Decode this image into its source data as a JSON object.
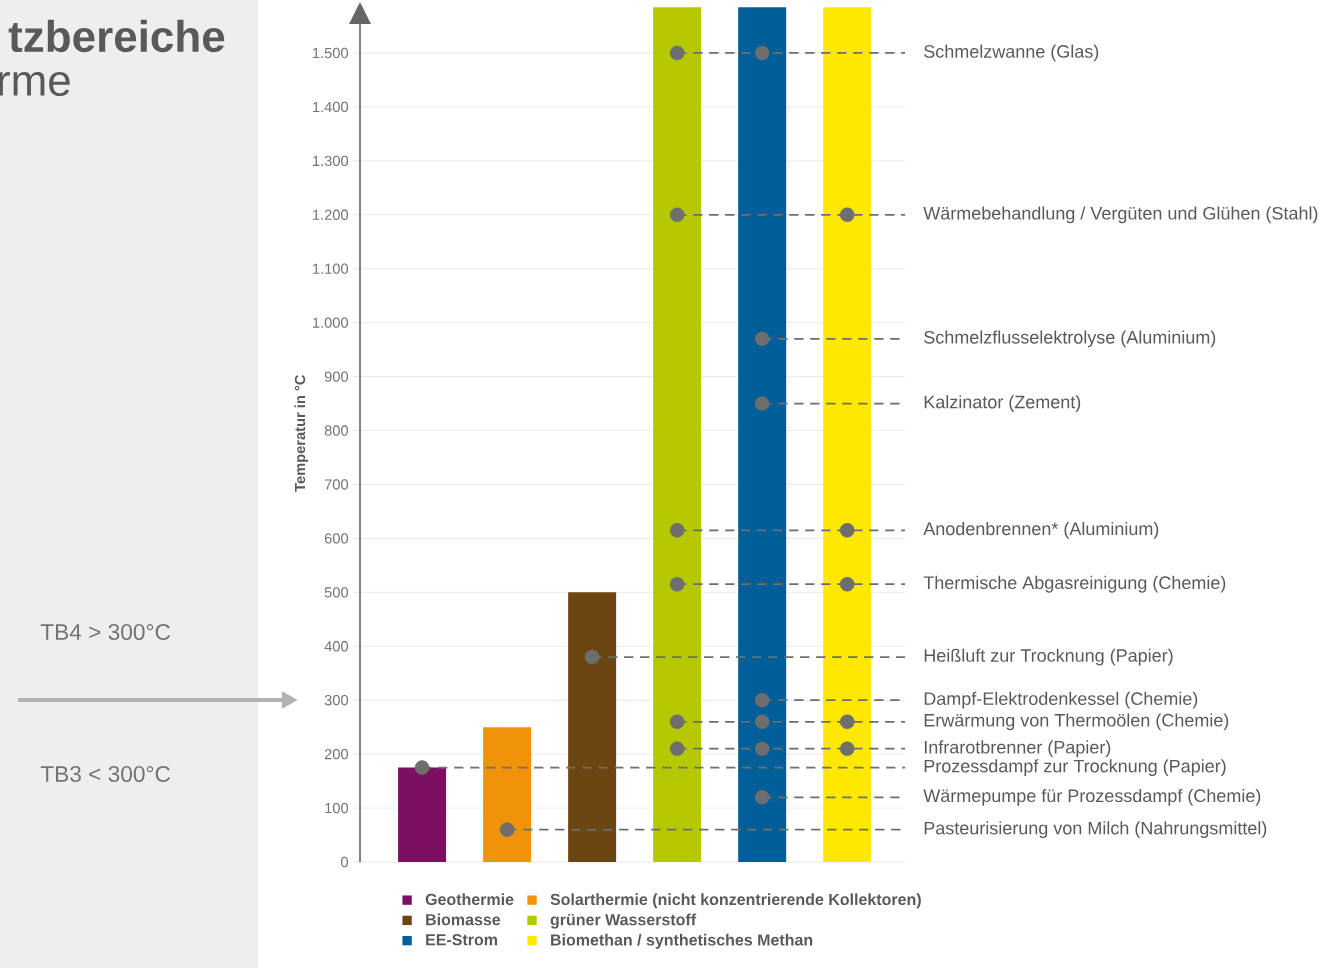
{
  "chart_data": {
    "type": "bar",
    "title": "tzbereiche",
    "subtitle": "rme",
    "ylabel": "Temperatur in °C",
    "categories": [
      null,
      null,
      null,
      null,
      null,
      null
    ],
    "series": [
      {
        "name": "Geothermie",
        "color": "#7b0f62",
        "values": [
          175,
          null,
          null,
          null,
          null,
          null
        ]
      },
      {
        "name": "Solarthermie (nicht konzentrierende Kollektoren)",
        "color": "#f0920a",
        "values": [
          null,
          250,
          null,
          null,
          null,
          null
        ]
      },
      {
        "name": "Biomasse",
        "color": "#6b4512",
        "values": [
          null,
          null,
          500,
          null,
          null,
          null
        ]
      },
      {
        "name": "grüner Wasserstoff",
        "color": "#b5c800",
        "values": [
          null,
          null,
          null,
          1585,
          null,
          null
        ]
      },
      {
        "name": "EE-Strom",
        "color": "#005f99",
        "values": [
          null,
          null,
          null,
          null,
          1585,
          null
        ]
      },
      {
        "name": "Biomethan / synthetisches Methan",
        "color": "#ffe800",
        "values": [
          null,
          null,
          null,
          null,
          null,
          1585
        ]
      },
      {
        "type": "scatter",
        "color": "#6e6e6e",
        "values": [
          null,
          null,
          null,
          1500,
          1500,
          null
        ]
      },
      {
        "type": "scatter",
        "color": "#6e6e6e",
        "values": [
          null,
          null,
          null,
          1200,
          null,
          1200
        ]
      },
      {
        "type": "scatter",
        "color": "#6e6e6e",
        "values": [
          null,
          null,
          null,
          null,
          970,
          null
        ]
      },
      {
        "type": "scatter",
        "color": "#6e6e6e",
        "values": [
          null,
          null,
          null,
          null,
          850,
          null
        ]
      },
      {
        "type": "scatter",
        "color": "#6e6e6e",
        "values": [
          null,
          null,
          null,
          615,
          null,
          615
        ]
      },
      {
        "type": "scatter",
        "color": "#6e6e6e",
        "values": [
          null,
          null,
          null,
          515,
          null,
          515
        ]
      },
      {
        "type": "scatter",
        "color": "#6e6e6e",
        "values": [
          null,
          null,
          380,
          null,
          null,
          null
        ]
      },
      {
        "type": "scatter",
        "color": "#6e6e6e",
        "values": [
          null,
          null,
          null,
          null,
          300,
          null
        ]
      },
      {
        "type": "scatter",
        "color": "#6e6e6e",
        "values": [
          null,
          null,
          null,
          260,
          260,
          260
        ]
      },
      {
        "type": "scatter",
        "color": "#6e6e6e",
        "values": [
          null,
          null,
          null,
          210,
          210,
          210
        ]
      },
      {
        "type": "scatter",
        "color": "#6e6e6e",
        "values": [
          175,
          null,
          null,
          null,
          null,
          null
        ]
      },
      {
        "type": "scatter",
        "color": "#6e6e6e",
        "values": [
          null,
          null,
          null,
          null,
          120,
          null
        ]
      },
      {
        "type": "scatter",
        "color": "#6e6e6e",
        "values": [
          null,
          60,
          null,
          null,
          null,
          null
        ]
      }
    ],
    "ylim": [
      0,
      1590
    ],
    "yticks": [
      0,
      100,
      200,
      300,
      400,
      500,
      600,
      700,
      800,
      900,
      {
        "value": 1000,
        "label": "1.000"
      },
      {
        "value": 1100,
        "label": "1.100"
      },
      {
        "value": 1200,
        "label": "1.200"
      },
      {
        "value": 1300,
        "label": "1.300"
      },
      {
        "value": 1400,
        "label": "1.400"
      },
      {
        "value": 1500,
        "label": "1.500"
      }
    ],
    "grid": "y",
    "marker": "circle",
    "legend": "bottom",
    "ref_lines": [
      {
        "axis": "y",
        "value": 1500,
        "label": "Schmelzwanne (Glas)",
        "color": "#6e6e6e",
        "line_style": "dashed"
      },
      {
        "axis": "y",
        "value": 1200,
        "label": "Wärmebehandlung / Vergüten und Glühen (Stahl)",
        "color": "#6e6e6e",
        "line_style": "dashed"
      },
      {
        "axis": "y",
        "value": 970,
        "label": "Schmelzflusselektrolyse (Aluminium)",
        "color": "#6e6e6e",
        "line_style": "dashed"
      },
      {
        "axis": "y",
        "value": 850,
        "label": "Kalzinator (Zement)",
        "color": "#6e6e6e",
        "line_style": "dashed"
      },
      {
        "axis": "y",
        "value": 615,
        "label": "Anodenbrennen* (Aluminium)",
        "color": "#6e6e6e",
        "line_style": "dashed"
      },
      {
        "axis": "y",
        "value": 515,
        "label": "Thermische Abgasreinigung (Chemie)",
        "color": "#6e6e6e",
        "line_style": "dashed"
      },
      {
        "axis": "y",
        "value": 380,
        "label": "Heißluft zur Trocknung (Papier)",
        "color": "#6e6e6e",
        "line_style": "dashed"
      },
      {
        "axis": "y",
        "value": 300,
        "label": "Dampf-Elektrodenkessel (Chemie)",
        "color": "#6e6e6e",
        "line_style": "dashed"
      },
      {
        "axis": "y",
        "value": 260,
        "label": "Erwärmung von Thermoölen (Chemie)",
        "color": "#6e6e6e",
        "line_style": "dashed"
      },
      {
        "axis": "y",
        "value": 210,
        "label": "Infrarotbrenner (Papier)",
        "color": "#6e6e6e",
        "line_style": "dashed"
      },
      {
        "axis": "y",
        "value": 175,
        "label": "Prozessdampf zur Trocknung (Papier)",
        "color": "#6e6e6e",
        "line_style": "dashed"
      },
      {
        "axis": "y",
        "value": 120,
        "label": "Wärmepumpe für Prozessdampf (Chemie)",
        "color": "#6e6e6e",
        "line_style": "dashed"
      },
      {
        "axis": "y",
        "value": 60,
        "label": "Pasteurisierung von Milch (Nahrungsmittel)",
        "color": "#6e6e6e",
        "line_style": "dashed"
      }
    ],
    "annotations": [
      "TB4 > 300°C",
      "TB3 < 300°C"
    ]
  }
}
